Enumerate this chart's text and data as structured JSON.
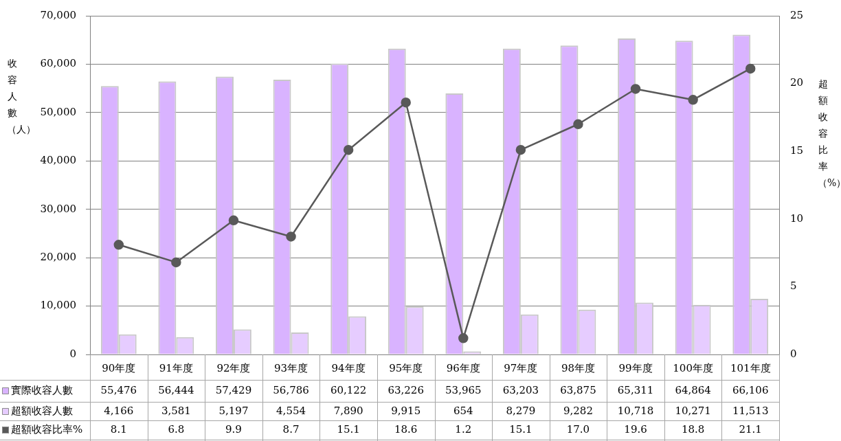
{
  "chart_data": {
    "type": "bar",
    "ylabel": "收容人數（人）",
    "y2label": "超額收容比率（%）",
    "categories": [
      "90年度",
      "91年度",
      "92年度",
      "93年度",
      "94年度",
      "95年度",
      "96年度",
      "97年度",
      "98年度",
      "99年度",
      "100年度",
      "101年度"
    ],
    "series": [
      {
        "name": "實際收容人數",
        "color": "#d9b3ff",
        "values": [
          55476,
          56444,
          57429,
          56786,
          60122,
          63226,
          53965,
          63203,
          63875,
          65311,
          64864,
          66106
        ],
        "value_labels": [
          "55,476",
          "56,444",
          "57,429",
          "56,786",
          "60,122",
          "63,226",
          "53,965",
          "63,203",
          "63,875",
          "65,311",
          "64,864",
          "66,106"
        ]
      },
      {
        "name": "超額收容人數",
        "color": "#e6ccff",
        "values": [
          4166,
          3581,
          5197,
          4554,
          7890,
          9915,
          654,
          8279,
          9282,
          10718,
          10271,
          11513
        ],
        "value_labels": [
          "4,166",
          "3,581",
          "5,197",
          "4,554",
          "7,890",
          "9,915",
          "654",
          "8,279",
          "9,282",
          "10,718",
          "10,271",
          "11,513"
        ]
      },
      {
        "name": "超額收容比率%",
        "type": "line",
        "axis": "y2",
        "color": "#595959",
        "values": [
          8.1,
          6.8,
          9.9,
          8.7,
          15.1,
          18.6,
          1.2,
          15.1,
          17.0,
          19.6,
          18.8,
          21.1
        ],
        "value_labels": [
          "8.1",
          "6.8",
          "9.9",
          "8.7",
          "15.1",
          "18.6",
          "1.2",
          "15.1",
          "17.0",
          "19.6",
          "18.8",
          "21.1"
        ]
      }
    ],
    "ylim": [
      0,
      70000
    ],
    "yticks": [
      {
        "value": 0,
        "label": "0"
      },
      {
        "value": 10000,
        "label": "10,000"
      },
      {
        "value": 20000,
        "label": "20,000"
      },
      {
        "value": 30000,
        "label": "30,000"
      },
      {
        "value": 40000,
        "label": "40,000"
      },
      {
        "value": 50000,
        "label": "50,000"
      },
      {
        "value": 60000,
        "label": "60,000"
      },
      {
        "value": 70000,
        "label": "70,000"
      }
    ],
    "y2lim": [
      0,
      25
    ],
    "y2ticks": [
      0,
      5,
      10,
      15,
      20,
      25
    ],
    "grid": "y",
    "marker": "circle",
    "legend": "bottom left"
  }
}
